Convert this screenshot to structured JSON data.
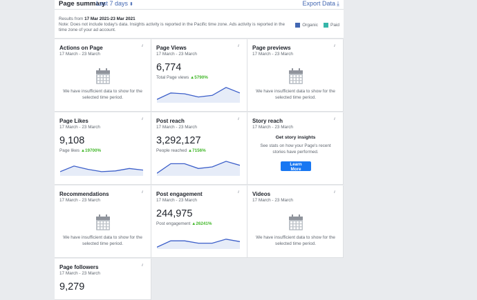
{
  "header": {
    "title": "Page summary",
    "range_label": "Last 7 days",
    "export_label": "Export Data",
    "results_prefix": "Results from",
    "results_range": "17 Mar 2021-23 Mar 2021",
    "note": "Note: Does not include today's data. Insights activity is reported in the Pacific time zone. Ads activity is reported in the time zone of your ad account.",
    "legend": [
      {
        "label": "Organic",
        "color": "#4267b2"
      },
      {
        "label": "Paid",
        "color": "#36b6a9"
      }
    ]
  },
  "colors": {
    "line": "#3b5ec9",
    "area": "#e6ecf8",
    "positive": "#42b72a",
    "button": "#1877f2"
  },
  "cards": {
    "actions_on_page": {
      "title": "Actions on Page",
      "date": "17 March - 23 March",
      "empty_text": "We have insufficient data to show for the selected time period."
    },
    "page_views": {
      "title": "Page Views",
      "date": "17 March - 23 March",
      "value": "6,774",
      "metric": "Total Page views",
      "change": "5790%",
      "trend": [
        0.15,
        0.55,
        0.5,
        0.3,
        0.4,
        0.9,
        0.55
      ]
    },
    "page_previews": {
      "title": "Page previews",
      "date": "17 March - 23 March",
      "empty_text": "We have insufficient data to show for the selected time period."
    },
    "page_likes": {
      "title": "Page Likes",
      "date": "17 March - 23 March",
      "value": "9,108",
      "metric": "Page likes",
      "change": "19700%",
      "trend": [
        0.2,
        0.55,
        0.35,
        0.2,
        0.25,
        0.4,
        0.3
      ]
    },
    "post_reach": {
      "title": "Post reach",
      "date": "17 March - 23 March",
      "value": "3,292,127",
      "metric": "People reached",
      "change": "7156%",
      "trend": [
        0.1,
        0.7,
        0.7,
        0.4,
        0.5,
        0.85,
        0.6
      ]
    },
    "story_reach": {
      "title": "Story reach",
      "date": "17 March - 23 March",
      "heading": "Get story insights",
      "text": "See stats on how your Page's recent stories have performed.",
      "button_label": "Learn More"
    },
    "recommendations": {
      "title": "Recommendations",
      "date": "17 March - 23 March",
      "empty_text": "We have insufficient data to show for the selected time period."
    },
    "post_engagement": {
      "title": "Post engagement",
      "date": "17 March - 23 March",
      "value": "244,975",
      "metric": "Post engagement",
      "change": "26241%",
      "trend": [
        0.05,
        0.45,
        0.45,
        0.3,
        0.3,
        0.55,
        0.4
      ]
    },
    "videos": {
      "title": "Videos",
      "date": "17 March - 23 March",
      "empty_text": "We have insufficient data to show for the selected time period."
    },
    "page_followers": {
      "title": "Page followers",
      "date": "17 March - 23 March",
      "value": "9,279"
    }
  }
}
